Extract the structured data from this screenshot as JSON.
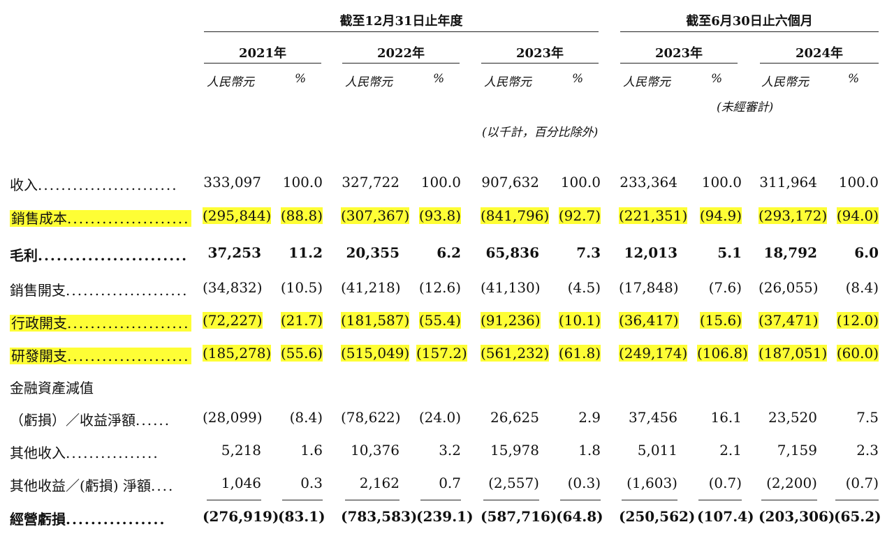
{
  "headers": {
    "group_year": "截至12月31日止年度",
    "group_half": "截至6月30日止六個月",
    "years": [
      "2021年",
      "2022年",
      "2023年",
      "2023年",
      "2024年"
    ],
    "unit_rmb": "人民幣元",
    "unit_pct": "%",
    "unaudited": "(未經審計)",
    "thousands_note": "(以千計，百分比除外)"
  },
  "rows": [
    {
      "label": "收入",
      "dots": "........................",
      "highlight": false,
      "bold": false,
      "values": [
        "333,097",
        "100.0",
        "327,722",
        "100.0",
        "907,632",
        "100.0",
        "233,364",
        "100.0",
        "311,964",
        "100.0"
      ]
    },
    {
      "label": "銷售成本",
      "dots": ".....................",
      "highlight": true,
      "bold": false,
      "values": [
        "(295,844)",
        "(88.8)",
        "(307,367)",
        "(93.8)",
        "(841,796)",
        "(92.7)",
        "(221,351)",
        "(94.9)",
        "(293,172)",
        "(94.0)"
      ]
    },
    {
      "label": "毛利",
      "dots": "........................",
      "highlight": false,
      "bold": true,
      "values": [
        "37,253",
        "11.2",
        "20,355",
        "6.2",
        "65,836",
        "7.3",
        "12,013",
        "5.1",
        "18,792",
        "6.0"
      ]
    },
    {
      "label": "銷售開支",
      "dots": ".....................",
      "highlight": false,
      "bold": false,
      "values": [
        "(34,832)",
        "(10.5)",
        "(41,218)",
        "(12.6)",
        "(41,130)",
        "(4.5)",
        "(17,848)",
        "(7.6)",
        "(26,055)",
        "(8.4)"
      ]
    },
    {
      "label": "行政開支",
      "dots": ".....................",
      "highlight": true,
      "bold": false,
      "values": [
        "(72,227)",
        "(21.7)",
        "(181,587)",
        "(55.4)",
        "(91,236)",
        "(10.1)",
        "(36,417)",
        "(15.6)",
        "(37,471)",
        "(12.0)"
      ]
    },
    {
      "label": "研發開支",
      "dots": ".....................",
      "highlight": true,
      "bold": false,
      "values": [
        "(185,278)",
        "(55.6)",
        "(515,049)",
        "(157.2)",
        "(561,232)",
        "(61.8)",
        "(249,174)",
        "(106.8)",
        "(187,051)",
        "(60.0)"
      ]
    },
    {
      "label": "金融資產減值",
      "dots": "",
      "highlight": false,
      "bold": false,
      "values": [
        "",
        "",
        "",
        "",
        "",
        "",
        "",
        "",
        "",
        ""
      ]
    },
    {
      "label": "（虧損）／收益淨額",
      "dots": "......",
      "highlight": false,
      "bold": false,
      "values": [
        "(28,099)",
        "(8.4)",
        "(78,622)",
        "(24.0)",
        "26,625",
        "2.9",
        "37,456",
        "16.1",
        "23,520",
        "7.5"
      ]
    },
    {
      "label": "其他收入",
      "dots": "................",
      "highlight": false,
      "bold": false,
      "values": [
        "5,218",
        "1.6",
        "10,376",
        "3.2",
        "15,978",
        "1.8",
        "5,011",
        "2.1",
        "7,159",
        "2.3"
      ]
    },
    {
      "label": "其他收益／(虧損) 淨額",
      "dots": "....",
      "highlight": false,
      "bold": false,
      "values": [
        "1,046",
        "0.3",
        "2,162",
        "0.7",
        "(2,557)",
        "(0.3)",
        "(1,603)",
        "(0.7)",
        "(2,200)",
        "(0.7)"
      ]
    },
    {
      "label": "經營虧損",
      "dots": "................",
      "highlight": false,
      "bold": true,
      "values": [
        "(276,919)",
        "(83.1)",
        "(783,583)",
        "(239.1)",
        "(587,716)",
        "(64.8)",
        "(250,562)",
        "(107.4)",
        "(203,306)",
        "(65.2)"
      ]
    }
  ]
}
